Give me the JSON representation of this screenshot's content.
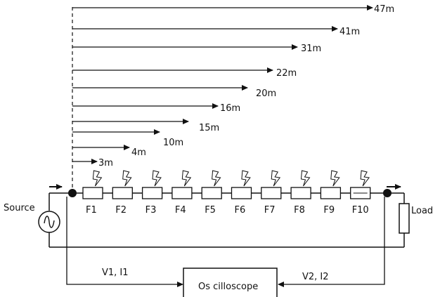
{
  "distances": [
    "47m",
    "41m",
    "31m",
    "22m",
    "20m",
    "16m",
    "15m",
    "10m",
    "4m",
    "3m"
  ],
  "faults": [
    "F1",
    "F2",
    "F3",
    "F4",
    "F5",
    "F6",
    "F7",
    "F8",
    "F9",
    "F10"
  ],
  "source_label": "Source",
  "load_label": "Load",
  "scope_label": "Os cilloscope",
  "left_measure": "V1, I1",
  "right_measure": "V2, I2",
  "colors": {
    "line": "#111111",
    "background": "#ffffff"
  }
}
